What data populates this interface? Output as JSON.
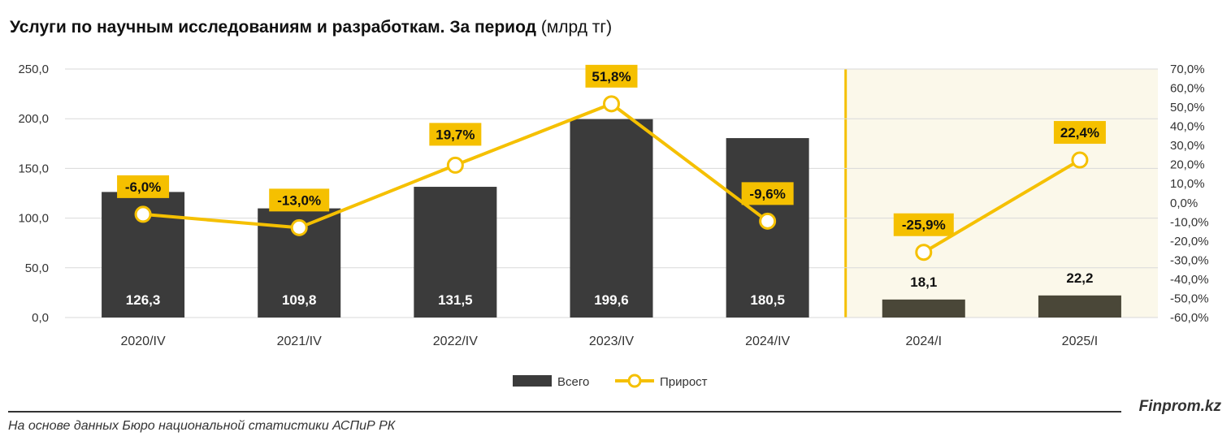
{
  "title": {
    "bold": "Услуги по научным исследованиям и разработкам. За период",
    "unit": "(млрд тг)"
  },
  "chart_data": {
    "type": "bar+line",
    "categories": [
      "2020/IV",
      "2021/IV",
      "2022/IV",
      "2023/IV",
      "2024/IV",
      "2024/I",
      "2025/I"
    ],
    "series": [
      {
        "name": "Всего",
        "type": "bar",
        "axis": "left",
        "values": [
          126.3,
          109.8,
          131.5,
          199.6,
          180.5,
          18.1,
          22.2
        ],
        "labels": [
          "126,3",
          "109,8",
          "131,5",
          "199,6",
          "180,5",
          "18,1",
          "22,2"
        ]
      },
      {
        "name": "Прирост",
        "type": "line",
        "axis": "right",
        "values": [
          -6.0,
          -13.0,
          19.7,
          51.8,
          -9.6,
          -25.9,
          22.4
        ],
        "labels": [
          "-6,0%",
          "-13,0%",
          "19,7%",
          "51,8%",
          "-9,6%",
          "-25,9%",
          "22,4%"
        ]
      }
    ],
    "left_axis": {
      "min": 0,
      "max": 250,
      "ticks": [
        "0,0",
        "50,0",
        "100,0",
        "150,0",
        "200,0",
        "250,0"
      ]
    },
    "right_axis": {
      "min": -60,
      "max": 70,
      "ticks": [
        "-60,0%",
        "-50,0%",
        "-40,0%",
        "-30,0%",
        "-20,0%",
        "-10,0%",
        "0,0%",
        "10,0%",
        "20,0%",
        "30,0%",
        "40,0%",
        "50,0%",
        "60,0%",
        "70,0%"
      ]
    },
    "highlight_categories": [
      "2024/I",
      "2025/I"
    ],
    "legend": [
      "Всего",
      "Прирост"
    ],
    "grid": true
  },
  "colors": {
    "bar_main": "#3b3b3b",
    "bar_highlight": "#4a4738",
    "line": "#f5c000",
    "label_bg": "#f5c000",
    "highlight_bg": "#fbf8ea",
    "grid": "#d9d9d9"
  },
  "footer": {
    "brand": "Finprom.kz",
    "source": "На основе данных Бюро национальной статистики АСПиР РК"
  }
}
